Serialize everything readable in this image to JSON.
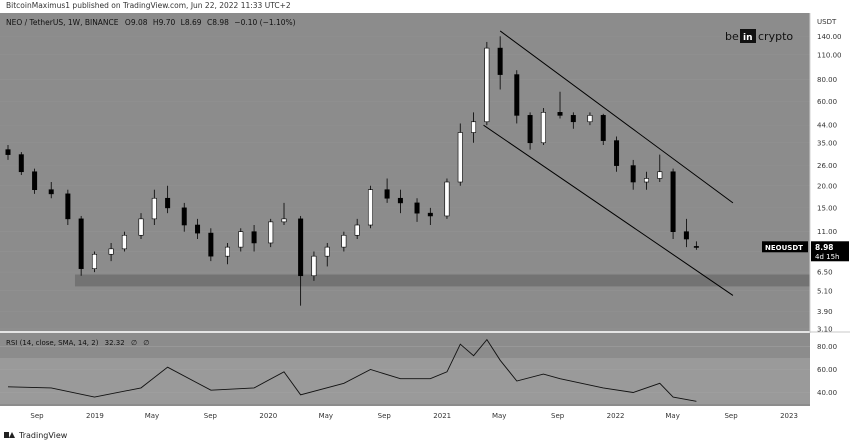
{
  "publisher_line": "BitcoinMaximus1 published on TradingView.com, Jun 22, 2022 11:33 UTC+2",
  "symbol_header": "NEO / TetherUS, 1W, BINANCE",
  "ohlc": {
    "o_label": "O",
    "o": "9.08",
    "h_label": "H",
    "h": "9.70",
    "l_label": "L",
    "l": "8.69",
    "c_label": "C",
    "c": "8.98",
    "change": "−0.10 (−1.10%)"
  },
  "brand": {
    "left": "be",
    "mid": "in",
    "right": "crypto"
  },
  "price_axis": {
    "unit": "USDT",
    "ticks": [
      "140.00",
      "110.00",
      "80.00",
      "60.00",
      "44.00",
      "35.00",
      "26.00",
      "20.00",
      "15.00",
      "11.00",
      "8.50",
      "6.50",
      "5.10",
      "3.90",
      "3.10"
    ]
  },
  "last_price": {
    "symbol": "NEOUSDT",
    "price": "8.98",
    "countdown": "4d 15h",
    "color": "#000000"
  },
  "time_axis": {
    "labels": [
      "Sep",
      "2019",
      "May",
      "Sep",
      "2020",
      "May",
      "Sep",
      "2021",
      "May",
      "Sep",
      "2022",
      "May",
      "Sep",
      "2023"
    ]
  },
  "rsi": {
    "label": "RSI (14, close, SMA, 14, 2)",
    "value": "32.32",
    "na1": "∅",
    "na2": "∅",
    "ticks": [
      "80.00",
      "60.00",
      "40.00"
    ]
  },
  "footer": {
    "brand": "TradingView"
  },
  "colors": {
    "plot_bg": "#8c8c8c",
    "panel_bg": "#8c8c8c",
    "up_candle": "#ffffff",
    "down_candle": "#000000",
    "support_zone": "#6f6f6f",
    "rsi_band": "#999999"
  },
  "chart_data": [
    {
      "type": "candlestick",
      "title": "NEO / TetherUS, 1W, BINANCE",
      "y_scale": "log",
      "ylim": [
        3.1,
        160
      ],
      "support_zone": [
        5.4,
        6.3
      ],
      "channel": {
        "upper": [
          [
            "2021-05-03",
            150
          ],
          [
            "2022-09-05",
            16
          ]
        ],
        "lower": [
          [
            "2021-03-29",
            44
          ],
          [
            "2022-09-05",
            4.8
          ]
        ]
      },
      "candles": [
        [
          "2018-07-02",
          32,
          34,
          28,
          30
        ],
        [
          "2018-07-30",
          30,
          31,
          23,
          24
        ],
        [
          "2018-08-27",
          24,
          25,
          18,
          19
        ],
        [
          "2018-10-01",
          19,
          21,
          17,
          18
        ],
        [
          "2018-11-05",
          18,
          19,
          12,
          13
        ],
        [
          "2018-12-03",
          13,
          13.5,
          6.2,
          6.8
        ],
        [
          "2018-12-31",
          6.8,
          8.5,
          6.5,
          8.2
        ],
        [
          "2019-02-04",
          8.2,
          9.5,
          7.5,
          8.8
        ],
        [
          "2019-03-04",
          8.8,
          11,
          8.5,
          10.5
        ],
        [
          "2019-04-08",
          10.5,
          14,
          10,
          13
        ],
        [
          "2019-05-06",
          13,
          19,
          12,
          17
        ],
        [
          "2019-06-03",
          17,
          20,
          14,
          15
        ],
        [
          "2019-07-08",
          15,
          16,
          11,
          12
        ],
        [
          "2019-08-05",
          12,
          13,
          10,
          10.8
        ],
        [
          "2019-09-02",
          10.8,
          11.5,
          7.5,
          8
        ],
        [
          "2019-10-07",
          8,
          9.5,
          7.2,
          9
        ],
        [
          "2019-11-04",
          9,
          11.5,
          8.5,
          11
        ],
        [
          "2019-12-02",
          11,
          12,
          8.5,
          9.5
        ],
        [
          "2020-01-06",
          9.5,
          13,
          9,
          12.5
        ],
        [
          "2020-02-03",
          12.5,
          16,
          12,
          13
        ],
        [
          "2020-03-09",
          13,
          13.5,
          4.2,
          6.2
        ],
        [
          "2020-04-06",
          6.2,
          8.5,
          5.8,
          8
        ],
        [
          "2020-05-04",
          8,
          9.5,
          7,
          9
        ],
        [
          "2020-06-08",
          9,
          11,
          8.5,
          10.5
        ],
        [
          "2020-07-06",
          10.5,
          13,
          10,
          12
        ],
        [
          "2020-08-03",
          12,
          20,
          11.5,
          19
        ],
        [
          "2020-09-07",
          19,
          22,
          16,
          17
        ],
        [
          "2020-10-05",
          17,
          19,
          14,
          16
        ],
        [
          "2020-11-09",
          16,
          17,
          12.5,
          14
        ],
        [
          "2020-12-07",
          14,
          15,
          12,
          13.5
        ],
        [
          "2021-01-11",
          13.5,
          22,
          13,
          21
        ],
        [
          "2021-02-08",
          21,
          45,
          20,
          40
        ],
        [
          "2021-03-08",
          40,
          52,
          35,
          46
        ],
        [
          "2021-04-05",
          46,
          130,
          44,
          120
        ],
        [
          "2021-05-03",
          120,
          140,
          70,
          85
        ],
        [
          "2021-06-07",
          85,
          90,
          45,
          50
        ],
        [
          "2021-07-05",
          50,
          52,
          32,
          35
        ],
        [
          "2021-08-02",
          35,
          55,
          34,
          52
        ],
        [
          "2021-09-06",
          52,
          68,
          48,
          50
        ],
        [
          "2021-10-04",
          50,
          52,
          42,
          46
        ],
        [
          "2021-11-08",
          46,
          52,
          44,
          50
        ],
        [
          "2021-12-06",
          50,
          51,
          34,
          36
        ],
        [
          "2022-01-03",
          36,
          38,
          24,
          26
        ],
        [
          "2022-02-07",
          26,
          28,
          19,
          21
        ],
        [
          "2022-03-07",
          21,
          24,
          19,
          22
        ],
        [
          "2022-04-04",
          22,
          30,
          21,
          24
        ],
        [
          "2022-05-02",
          24,
          25,
          10,
          11
        ],
        [
          "2022-05-30",
          11,
          13,
          9,
          10
        ],
        [
          "2022-06-20",
          9.08,
          9.7,
          8.69,
          8.98
        ]
      ]
    },
    {
      "type": "line",
      "title": "RSI (14, close, SMA, 14, 2)",
      "ylim": [
        30,
        90
      ],
      "band": [
        30,
        70
      ],
      "x": [
        "2018-07-02",
        "2018-10-01",
        "2018-12-31",
        "2019-04-08",
        "2019-06-03",
        "2019-09-02",
        "2019-12-02",
        "2020-02-03",
        "2020-03-09",
        "2020-06-08",
        "2020-08-03",
        "2020-10-05",
        "2020-12-07",
        "2021-01-11",
        "2021-02-08",
        "2021-03-08",
        "2021-04-05",
        "2021-05-03",
        "2021-06-07",
        "2021-08-02",
        "2021-09-06",
        "2021-12-06",
        "2022-02-07",
        "2022-04-04",
        "2022-05-02",
        "2022-06-20"
      ],
      "y": [
        45,
        44,
        36,
        44,
        62,
        42,
        44,
        58,
        38,
        48,
        60,
        52,
        52,
        58,
        82,
        72,
        86,
        68,
        50,
        56,
        52,
        44,
        40,
        48,
        36,
        32.32
      ]
    }
  ]
}
